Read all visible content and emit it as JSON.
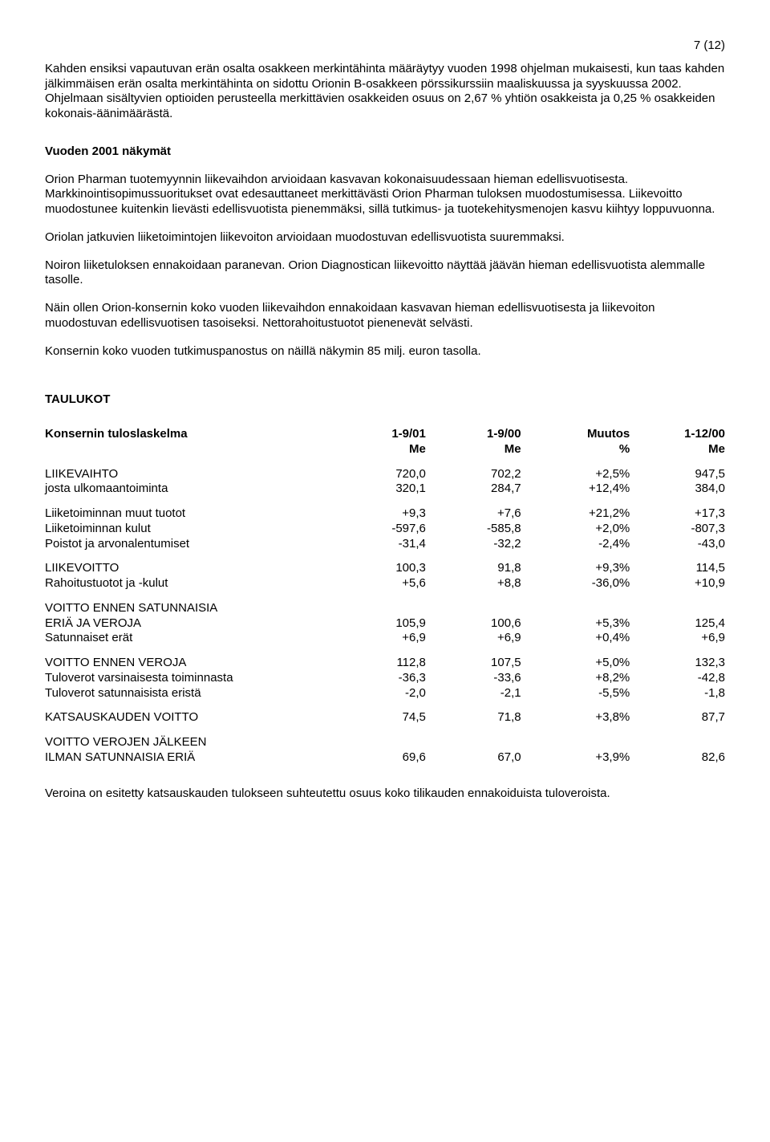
{
  "page_number": "7 (12)",
  "para1": "Kahden ensiksi vapautuvan erän osalta osakkeen merkintähinta määräytyy vuoden 1998 ohjelman mukaisesti, kun taas kahden jälkimmäisen erän osalta merkintähinta on sidottu Orionin B-osakkeen pörssikurssiin maaliskuussa ja syyskuussa 2002. Ohjelmaan sisältyvien optioiden perusteella merkittävien osakkeiden osuus on 2,67 % yhtiön osakkeista ja 0,25 % osakkeiden kokonais-äänimäärästä.",
  "outlook_title": "Vuoden 2001 näkymät",
  "para2": "Orion Pharman tuotemyynnin liikevaihdon arvioidaan kasvavan kokonaisuudessaan hieman edellisvuotisesta. Markkinointisopimussuoritukset ovat edesauttaneet merkittävästi Orion Pharman tuloksen muodostumisessa. Liikevoitto muodostunee kuitenkin lievästi edellisvuotista pienemmäksi, sillä tutkimus- ja tuotekehitysmenojen kasvu kiihtyy loppuvuonna.",
  "para3": "Oriolan jatkuvien liiketoimintojen liikevoiton arvioidaan muodostuvan edellisvuotista suuremmaksi.",
  "para4": "Noiron liiketuloksen ennakoidaan paranevan. Orion Diagnostican liikevoitto näyttää jäävän hieman edellisvuotista alemmalle tasolle.",
  "para5": "Näin ollen Orion-konsernin koko vuoden liikevaihdon ennakoidaan kasvavan hieman edellisvuotisesta ja liikevoiton muodostuvan edellisvuotisen tasoiseksi. Nettorahoitustuotot pienenevät selvästi.",
  "para6": "Konsernin koko vuoden tutkimuspanostus on näillä näkymin 85 milj. euron tasolla.",
  "tables_title": "TAULUKOT",
  "table": {
    "header1": {
      "label": "Konsernin tuloslaskelma",
      "c1": "1-9/01",
      "c2": "1-9/00",
      "c3": "Muutos",
      "c4": "1-12/00"
    },
    "header2": {
      "label": "",
      "c1": "Me",
      "c2": "Me",
      "c3": "%",
      "c4": "Me"
    },
    "r1": {
      "label": "LIIKEVAIHTO",
      "c1": "720,0",
      "c2": "702,2",
      "c3": "+2,5%",
      "c4": "947,5"
    },
    "r2": {
      "label": "josta ulkomaantoiminta",
      "c1": "320,1",
      "c2": "284,7",
      "c3": "+12,4%",
      "c4": "384,0"
    },
    "r3": {
      "label": "Liiketoiminnan muut tuotot",
      "c1": "+9,3",
      "c2": "+7,6",
      "c3": "+21,2%",
      "c4": "+17,3"
    },
    "r4": {
      "label": "Liiketoiminnan kulut",
      "c1": "-597,6",
      "c2": "-585,8",
      "c3": "+2,0%",
      "c4": "-807,3"
    },
    "r5": {
      "label": "Poistot ja arvonalentumiset",
      "c1": "-31,4",
      "c2": "-32,2",
      "c3": "-2,4%",
      "c4": "-43,0"
    },
    "r6": {
      "label": "LIIKEVOITTO",
      "c1": "100,3",
      "c2": "91,8",
      "c3": "+9,3%",
      "c4": "114,5"
    },
    "r7": {
      "label": "Rahoitustuotot ja -kulut",
      "c1": "+5,6",
      "c2": "+8,8",
      "c3": "-36,0%",
      "c4": "+10,9"
    },
    "r8a": {
      "label": "VOITTO ENNEN SATUNNAISIA"
    },
    "r8b": {
      "label": "ERIÄ JA VEROJA",
      "c1": "105,9",
      "c2": "100,6",
      "c3": "+5,3%",
      "c4": "125,4"
    },
    "r9": {
      "label": "Satunnaiset erät",
      "c1": "+6,9",
      "c2": "+6,9",
      "c3": "+0,4%",
      "c4": "+6,9"
    },
    "r10": {
      "label": "VOITTO ENNEN VEROJA",
      "c1": "112,8",
      "c2": "107,5",
      "c3": "+5,0%",
      "c4": "132,3"
    },
    "r11": {
      "label": "Tuloverot varsinaisesta toiminnasta",
      "c1": "-36,3",
      "c2": "-33,6",
      "c3": "+8,2%",
      "c4": "-42,8"
    },
    "r12": {
      "label": "Tuloverot satunnaisista eristä",
      "c1": "-2,0",
      "c2": "-2,1",
      "c3": "-5,5%",
      "c4": "-1,8"
    },
    "r13": {
      "label": "KATSAUSKAUDEN VOITTO",
      "c1": "74,5",
      "c2": "71,8",
      "c3": "+3,8%",
      "c4": "87,7"
    },
    "r14a": {
      "label": "VOITTO VEROJEN JÄLKEEN"
    },
    "r14b": {
      "label": "ILMAN SATUNNAISIA ERIÄ",
      "c1": "69,6",
      "c2": "67,0",
      "c3": "+3,9%",
      "c4": "82,6"
    }
  },
  "footer": "Veroina on esitetty katsauskauden tulokseen suhteutettu osuus koko tilikauden ennakoiduista tuloveroista."
}
